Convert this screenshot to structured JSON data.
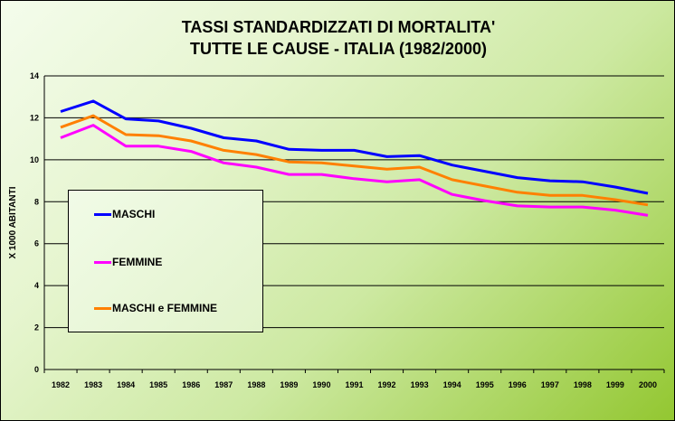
{
  "chart_data": {
    "type": "line",
    "title": [
      "TASSI STANDARDIZZATI DI MORTALITA'",
      "TUTTE LE CAUSE - ITALIA (1982/2000)"
    ],
    "xlabel": "",
    "ylabel": "X 1000 ABITANTI",
    "ylim": [
      0,
      14
    ],
    "yticks": [
      0,
      2,
      4,
      6,
      8,
      10,
      12,
      14
    ],
    "grid": true,
    "legend_position": "left-middle",
    "categories": [
      "1982",
      "1983",
      "1984",
      "1985",
      "1986",
      "1987",
      "1988",
      "1989",
      "1990",
      "1991",
      "1992",
      "1993",
      "1994",
      "1995",
      "1996",
      "1997",
      "1998",
      "1999",
      "2000"
    ],
    "series": [
      {
        "name": "MASCHI",
        "color": "#0000ff",
        "values": [
          12.3,
          12.8,
          11.95,
          11.85,
          11.5,
          11.05,
          10.9,
          10.5,
          10.45,
          10.45,
          10.15,
          10.2,
          9.75,
          9.45,
          9.15,
          9.0,
          8.95,
          8.7,
          8.4
        ]
      },
      {
        "name": "FEMMINE",
        "color": "#ff00ff",
        "values": [
          11.05,
          11.65,
          10.65,
          10.65,
          10.4,
          9.85,
          9.65,
          9.3,
          9.3,
          9.1,
          8.95,
          9.05,
          8.35,
          8.05,
          7.8,
          7.75,
          7.75,
          7.6,
          7.35
        ]
      },
      {
        "name": "MASCHI e FEMMINE",
        "color": "#ff8000",
        "values": [
          11.55,
          12.1,
          11.2,
          11.15,
          10.9,
          10.45,
          10.25,
          9.9,
          9.85,
          9.7,
          9.55,
          9.65,
          9.05,
          8.75,
          8.45,
          8.3,
          8.3,
          8.1,
          7.85
        ]
      }
    ]
  }
}
